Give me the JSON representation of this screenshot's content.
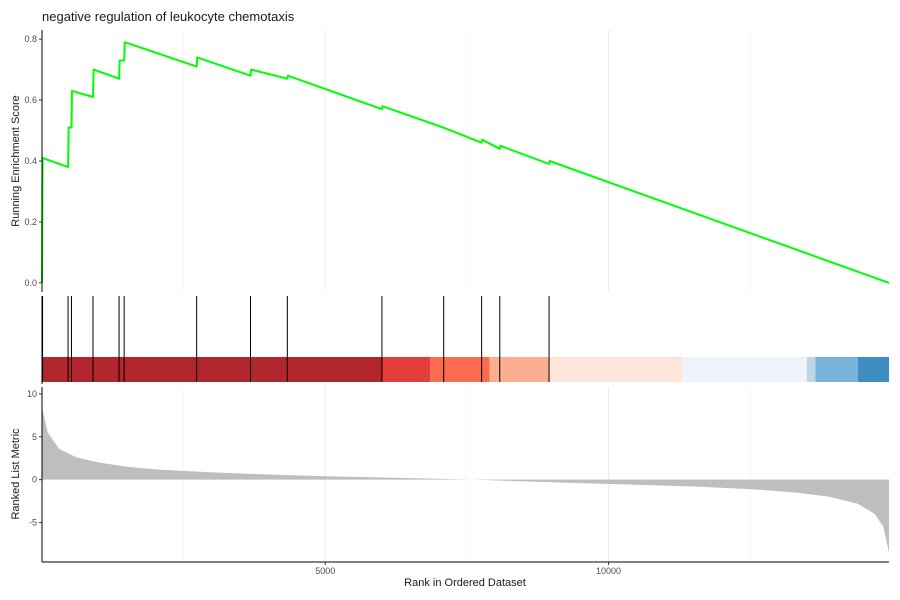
{
  "chart_data": {
    "type": "line",
    "title": "negative regulation of leukocyte chemotaxis",
    "xlabel": "Rank in Ordered Dataset",
    "xlim": [
      0,
      14950
    ],
    "x_ticks": [
      5000,
      10000
    ],
    "x_tick_labels": [
      "5000",
      "10000"
    ],
    "grid": true,
    "panels": {
      "enrichment": {
        "ylabel": "Running Enrichment Score",
        "ylim": [
          -0.03,
          0.83
        ],
        "y_ticks": [
          0.0,
          0.2,
          0.4,
          0.6,
          0.8
        ],
        "y_tick_labels": [
          "0.0",
          "0.2",
          "0.4",
          "0.6",
          "0.8"
        ],
        "line_color": "#00ff00",
        "points": [
          [
            0,
            0.0
          ],
          [
            10,
            0.41
          ],
          [
            460,
            0.38
          ],
          [
            470,
            0.51
          ],
          [
            520,
            0.51
          ],
          [
            530,
            0.63
          ],
          [
            900,
            0.61
          ],
          [
            910,
            0.7
          ],
          [
            1360,
            0.67
          ],
          [
            1370,
            0.73
          ],
          [
            1450,
            0.73
          ],
          [
            1460,
            0.79
          ],
          [
            2730,
            0.71
          ],
          [
            2740,
            0.74
          ],
          [
            3680,
            0.68
          ],
          [
            3690,
            0.7
          ],
          [
            4330,
            0.67
          ],
          [
            4340,
            0.68
          ],
          [
            6000,
            0.57
          ],
          [
            6010,
            0.58
          ],
          [
            7080,
            0.51
          ],
          [
            7760,
            0.46
          ],
          [
            7770,
            0.47
          ],
          [
            8080,
            0.44
          ],
          [
            8090,
            0.45
          ],
          [
            8950,
            0.39
          ],
          [
            8960,
            0.4
          ],
          [
            14950,
            0.0
          ]
        ]
      },
      "hits": {
        "gene_positions": [
          10,
          460,
          520,
          900,
          1360,
          1450,
          2730,
          3680,
          4330,
          6000,
          7090,
          7760,
          8080,
          8950
        ],
        "color_bands": [
          {
            "from": 0,
            "to": 6000,
            "color": "#b2262d"
          },
          {
            "from": 6000,
            "to": 6850,
            "color": "#e43e3b"
          },
          {
            "from": 6850,
            "to": 7900,
            "color": "#fb6b4e"
          },
          {
            "from": 7900,
            "to": 8950,
            "color": "#fcae91"
          },
          {
            "from": 8950,
            "to": 11300,
            "color": "#fee5d9"
          },
          {
            "from": 11300,
            "to": 13500,
            "color": "#eff3fb"
          },
          {
            "from": 13500,
            "to": 13650,
            "color": "#bdd7e8"
          },
          {
            "from": 13650,
            "to": 14400,
            "color": "#77b3da"
          },
          {
            "from": 14400,
            "to": 14950,
            "color": "#3e8dc3"
          }
        ]
      },
      "ranked": {
        "ylabel": "Ranked List Metric",
        "ylim": [
          -9.6,
          10.8
        ],
        "y_ticks": [
          -5,
          0,
          5,
          10
        ],
        "y_tick_labels": [
          "-5",
          "0",
          "5",
          "10"
        ],
        "fill_color": "#bebebe",
        "points": [
          [
            0,
            8.5
          ],
          [
            100,
            5.5
          ],
          [
            300,
            3.6
          ],
          [
            600,
            2.6
          ],
          [
            1000,
            2.0
          ],
          [
            1500,
            1.5
          ],
          [
            2000,
            1.2
          ],
          [
            3000,
            0.85
          ],
          [
            4000,
            0.6
          ],
          [
            5000,
            0.4
          ],
          [
            6000,
            0.25
          ],
          [
            7000,
            0.1
          ],
          [
            7600,
            0.0
          ],
          [
            8500,
            -0.2
          ],
          [
            9500,
            -0.4
          ],
          [
            10500,
            -0.6
          ],
          [
            11500,
            -0.8
          ],
          [
            12500,
            -1.1
          ],
          [
            13300,
            -1.5
          ],
          [
            13900,
            -2.0
          ],
          [
            14400,
            -2.8
          ],
          [
            14700,
            -4.0
          ],
          [
            14850,
            -5.5
          ],
          [
            14950,
            -8.5
          ]
        ]
      }
    }
  }
}
